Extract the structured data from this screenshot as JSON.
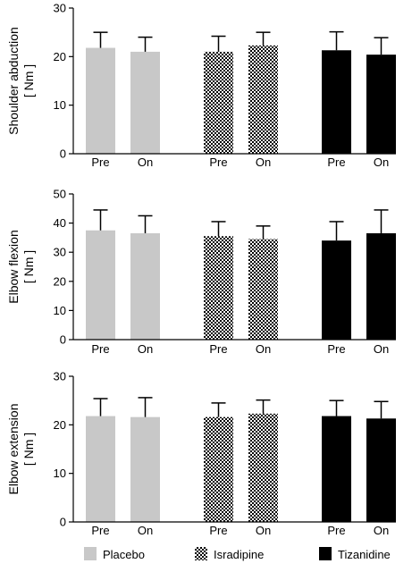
{
  "chart_data": [
    {
      "type": "bar",
      "ylabel_line1": "Shoulder abduction",
      "ylabel_line2": "[ Nm ]",
      "ylim": [
        0,
        30
      ],
      "yticks": [
        0,
        10,
        20,
        30
      ],
      "categories": [
        "Pre",
        "On",
        "Pre",
        "On",
        "Pre",
        "On"
      ],
      "groups": [
        "Placebo",
        "Placebo",
        "Isradipine",
        "Isradipine",
        "Tizanidine",
        "Tizanidine"
      ],
      "values": [
        21.8,
        21.0,
        21.0,
        22.3,
        21.3,
        20.4
      ],
      "errors": [
        3.2,
        3.0,
        3.2,
        2.7,
        3.8,
        3.5
      ]
    },
    {
      "type": "bar",
      "ylabel_line1": "Elbow flexion",
      "ylabel_line2": "[ Nm ]",
      "ylim": [
        0,
        50
      ],
      "yticks": [
        0,
        10,
        20,
        30,
        40,
        50
      ],
      "categories": [
        "Pre",
        "On",
        "Pre",
        "On",
        "Pre",
        "On"
      ],
      "groups": [
        "Placebo",
        "Placebo",
        "Isradipine",
        "Isradipine",
        "Tizanidine",
        "Tizanidine"
      ],
      "values": [
        37.5,
        36.5,
        35.5,
        34.5,
        34.0,
        36.5
      ],
      "errors": [
        7.0,
        6.0,
        5.0,
        4.5,
        6.5,
        8.0
      ]
    },
    {
      "type": "bar",
      "ylabel_line1": "Elbow extension",
      "ylabel_line2": "[ Nm ]",
      "ylim": [
        0,
        30
      ],
      "yticks": [
        0,
        10,
        20,
        30
      ],
      "categories": [
        "Pre",
        "On",
        "Pre",
        "On",
        "Pre",
        "On"
      ],
      "groups": [
        "Placebo",
        "Placebo",
        "Isradipine",
        "Isradipine",
        "Tizanidine",
        "Tizanidine"
      ],
      "values": [
        21.8,
        21.6,
        21.6,
        22.3,
        21.8,
        21.3
      ],
      "errors": [
        3.6,
        4.0,
        2.9,
        2.8,
        3.2,
        3.5
      ]
    }
  ],
  "legend": [
    {
      "label": "Placebo",
      "style": "solid",
      "color": "#c8c8c8"
    },
    {
      "label": "Isradipine",
      "style": "checker",
      "color": "#000000"
    },
    {
      "label": "Tizanidine",
      "style": "solid",
      "color": "#000000"
    }
  ]
}
